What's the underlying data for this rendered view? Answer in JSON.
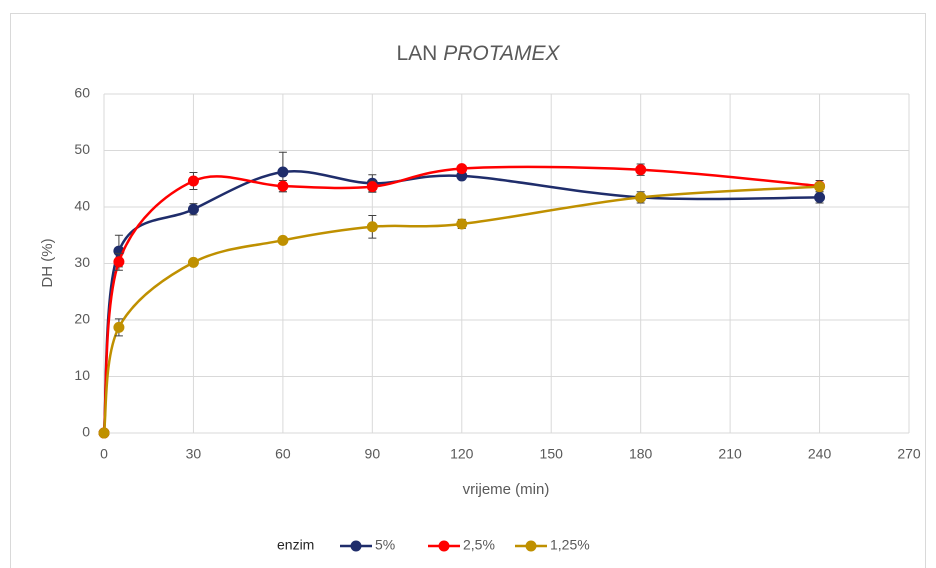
{
  "chart_data": {
    "type": "line",
    "title": {
      "text": "LAN",
      "emphasis": "PROTAMEX"
    },
    "x_label": "vrijeme (min)",
    "y_label": "DH (%)",
    "legend_title": "enzim",
    "legend": "bottom",
    "grid": true,
    "smooth": true,
    "x": [
      0,
      5,
      30,
      60,
      90,
      120,
      180,
      240
    ],
    "series": [
      {
        "name": "5%",
        "color": "#1f2d6b",
        "values": [
          0,
          32.2,
          39.6,
          46.2,
          44.2,
          45.5,
          41.7,
          41.7
        ],
        "errors": [
          0,
          2.8,
          1,
          3.5,
          1.5,
          0.5,
          1,
          1
        ]
      },
      {
        "name": "2,5%",
        "color": "#ff0000",
        "values": [
          0,
          30.3,
          44.6,
          43.7,
          43.6,
          46.8,
          46.6,
          43.7
        ],
        "errors": [
          0,
          1.5,
          1.5,
          1,
          1,
          0.5,
          1,
          1
        ]
      },
      {
        "name": "1,25%",
        "color": "#bf9000",
        "values": [
          0,
          18.7,
          30.2,
          34.1,
          36.5,
          37.0,
          41.7,
          43.6
        ],
        "errors": [
          0,
          1.5,
          0.5,
          0.5,
          2,
          0.8,
          0.5,
          0.5
        ]
      }
    ],
    "xlim": [
      0,
      270
    ],
    "xticks": [
      0,
      30,
      60,
      90,
      120,
      150,
      180,
      210,
      240,
      270
    ],
    "ylim": [
      0,
      60
    ],
    "yticks": [
      0,
      10,
      20,
      30,
      40,
      50,
      60
    ]
  }
}
